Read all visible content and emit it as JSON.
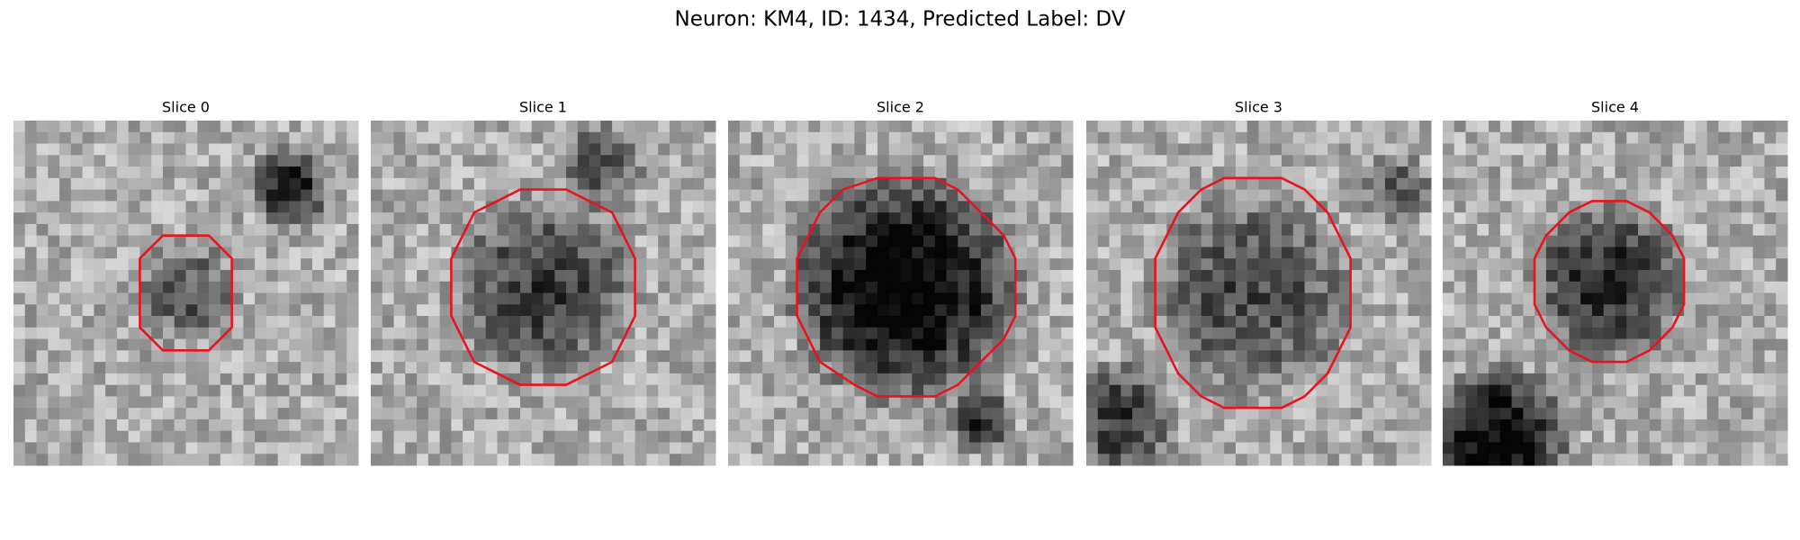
{
  "title": "Neuron: KM4, ID: 1434, Predicted Label: DV",
  "panels": [
    {
      "title": "Slice 0"
    },
    {
      "title": "Slice 1"
    },
    {
      "title": "Slice 2"
    },
    {
      "title": "Slice 3"
    },
    {
      "title": "Slice 4"
    }
  ]
}
